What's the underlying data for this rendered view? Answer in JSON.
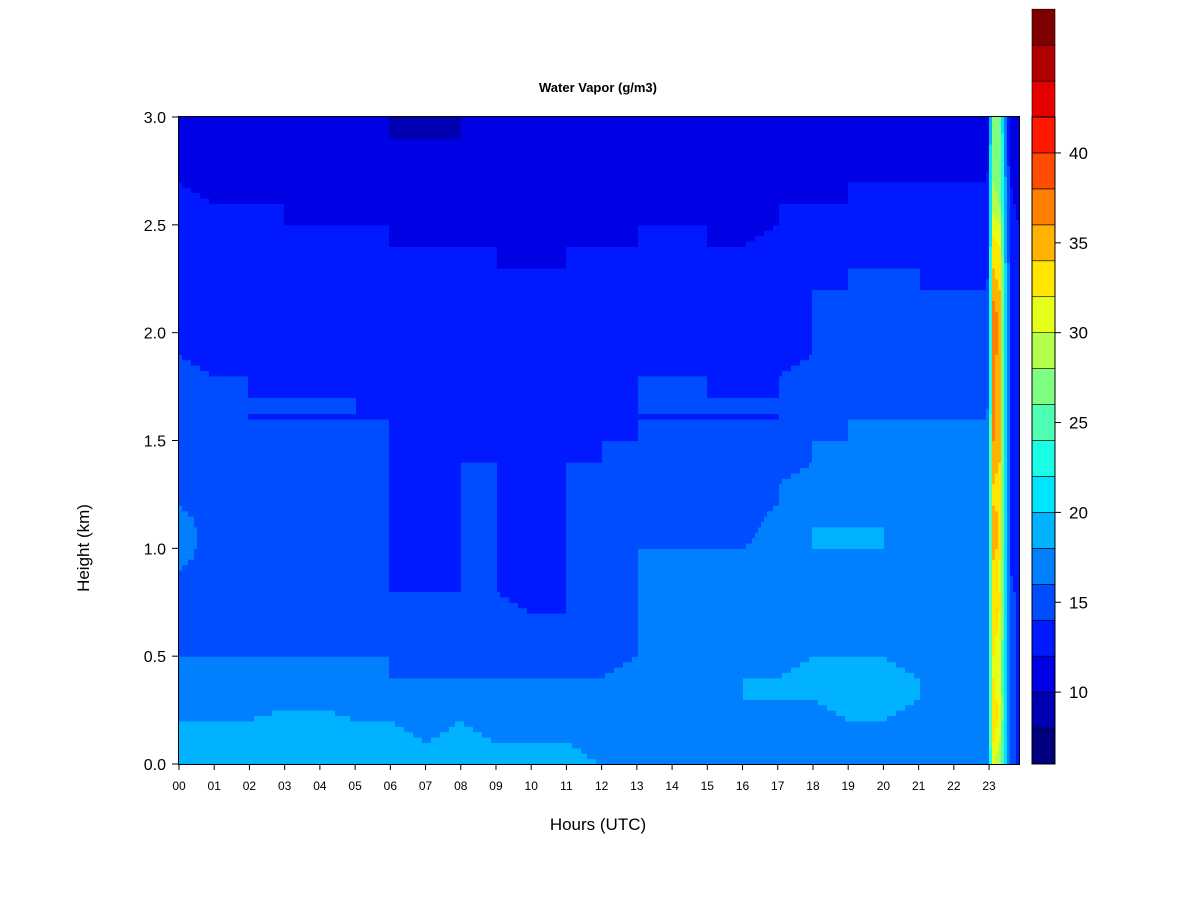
{
  "chart_data": {
    "type": "heatmap",
    "title": "Water Vapor (g/m3)",
    "xlabel": "Hours (UTC)",
    "ylabel": "Height (km)",
    "x_ticks": [
      "00",
      "01",
      "02",
      "03",
      "04",
      "05",
      "06",
      "07",
      "08",
      "09",
      "10",
      "11",
      "12",
      "13",
      "14",
      "15",
      "16",
      "17",
      "18",
      "19",
      "20",
      "21",
      "22",
      "23"
    ],
    "xlim": [
      0,
      23.85
    ],
    "ylim": [
      0,
      3.0
    ],
    "y_ticks": [
      "0.0",
      "0.5",
      "1.0",
      "1.5",
      "2.0",
      "2.5",
      "3.0"
    ],
    "y_tick_values": [
      0,
      0.5,
      1.0,
      1.5,
      2.0,
      2.5,
      3.0
    ],
    "colorbar": {
      "range": [
        6,
        42
      ],
      "step": 2,
      "tick_values": [
        10,
        15,
        20,
        25,
        30,
        35,
        40
      ],
      "tick_labels": [
        "10",
        "15",
        "20",
        "25",
        "30",
        "35",
        "40"
      ],
      "colors": [
        "#00007f",
        "#0000b2",
        "#0000e5",
        "#0019ff",
        "#004cff",
        "#007fff",
        "#00b2ff",
        "#00e5ff",
        "#19ffe5",
        "#4cffb2",
        "#7fff7f",
        "#b2ff4c",
        "#e5ff19",
        "#ffe500",
        "#ffb200",
        "#ff7f00",
        "#ff4c00",
        "#ff1900",
        "#e50000",
        "#b20000",
        "#7f0000"
      ]
    },
    "heights_km": [
      0.0,
      0.1,
      0.2,
      0.3,
      0.4,
      0.5,
      0.6,
      0.7,
      0.8,
      0.9,
      1.0,
      1.1,
      1.2,
      1.3,
      1.4,
      1.5,
      1.6,
      1.7,
      1.8,
      1.9,
      2.0,
      2.1,
      2.2,
      2.3,
      2.4,
      2.5,
      2.6,
      2.7,
      2.8,
      2.9,
      3.0
    ],
    "profiles": [
      {
        "hour": 0.0,
        "values_gm3": [
          19,
          19,
          18,
          17,
          17,
          16,
          16,
          16,
          16,
          16,
          17,
          17,
          16,
          16,
          16,
          16,
          16,
          16,
          15,
          14,
          14,
          14,
          14,
          14,
          14,
          14,
          13,
          12,
          11,
          11,
          10
        ]
      },
      {
        "hour": 1.0,
        "values_gm3": [
          19,
          19,
          18,
          17,
          16,
          16,
          15,
          15,
          15,
          15,
          15,
          15,
          15,
          15,
          15,
          15,
          15,
          14,
          14,
          13,
          13,
          13,
          13,
          13,
          13,
          13,
          12,
          11,
          11,
          10,
          10
        ]
      },
      {
        "hour": 2.0,
        "values_gm3": [
          19,
          19,
          18,
          17,
          16,
          16,
          15,
          15,
          15,
          15,
          15,
          15,
          15,
          15,
          15,
          15,
          14,
          14,
          14,
          13,
          13,
          13,
          13,
          13,
          13,
          12,
          12,
          11,
          11,
          10,
          10
        ]
      },
      {
        "hour": 3.0,
        "values_gm3": [
          20,
          19,
          19,
          17,
          16,
          16,
          15,
          15,
          15,
          15,
          15,
          15,
          15,
          15,
          15,
          14,
          14,
          14,
          13,
          13,
          13,
          13,
          13,
          13,
          13,
          12,
          12,
          11,
          11,
          10,
          10
        ]
      },
      {
        "hour": 4.0,
        "values_gm3": [
          20,
          19,
          19,
          17,
          16,
          16,
          15,
          15,
          15,
          15,
          15,
          15,
          15,
          15,
          14,
          14,
          14,
          14,
          13,
          13,
          13,
          13,
          13,
          13,
          13,
          12,
          11,
          11,
          10,
          10,
          10
        ]
      },
      {
        "hour": 5.0,
        "values_gm3": [
          19,
          19,
          18,
          17,
          16,
          16,
          15,
          15,
          15,
          15,
          15,
          15,
          15,
          15,
          14,
          14,
          14,
          14,
          13,
          13,
          13,
          13,
          13,
          12,
          12,
          12,
          11,
          11,
          10,
          10,
          10
        ]
      },
      {
        "hour": 6.0,
        "values_gm3": [
          19,
          19,
          18,
          17,
          16,
          16,
          15,
          14,
          14,
          14,
          14,
          14,
          14,
          14,
          14,
          14,
          14,
          13,
          13,
          13,
          13,
          13,
          12,
          12,
          12,
          12,
          11,
          11,
          10,
          10,
          10
        ]
      },
      {
        "hour": 7.0,
        "values_gm3": [
          19,
          18,
          17,
          16,
          16,
          15,
          15,
          14,
          14,
          13,
          13,
          12,
          12,
          12,
          13,
          13,
          13,
          13,
          13,
          13,
          12,
          12,
          12,
          12,
          12,
          11,
          11,
          10,
          10,
          10,
          9
        ]
      },
      {
        "hour": 8.0,
        "values_gm3": [
          19,
          19,
          18,
          17,
          16,
          16,
          15,
          15,
          14,
          14,
          14,
          14,
          14,
          14,
          14,
          14,
          13,
          13,
          13,
          13,
          13,
          12,
          12,
          12,
          12,
          11,
          11,
          10,
          10,
          10,
          10
        ]
      },
      {
        "hour": 9.0,
        "values_gm3": [
          19,
          18,
          17,
          17,
          16,
          15,
          15,
          15,
          14,
          14,
          14,
          14,
          14,
          14,
          14,
          13,
          13,
          13,
          13,
          13,
          13,
          12,
          12,
          12,
          12,
          11,
          11,
          10,
          10,
          10,
          10
        ]
      },
      {
        "hour": 10.0,
        "values_gm3": [
          18,
          18,
          17,
          16,
          16,
          15,
          14,
          14,
          13,
          13,
          13,
          13,
          13,
          13,
          13,
          13,
          13,
          13,
          13,
          12,
          12,
          12,
          12,
          12,
          11,
          11,
          11,
          10,
          10,
          10,
          10
        ]
      },
      {
        "hour": 11.0,
        "values_gm3": [
          19,
          18,
          17,
          16,
          16,
          15,
          15,
          14,
          14,
          14,
          14,
          14,
          14,
          14,
          14,
          13,
          13,
          13,
          13,
          13,
          13,
          12,
          12,
          12,
          12,
          11,
          11,
          10,
          10,
          10,
          10
        ]
      },
      {
        "hour": 12.0,
        "values_gm3": [
          18,
          17,
          17,
          16,
          16,
          15,
          15,
          15,
          14,
          14,
          14,
          14,
          14,
          14,
          14,
          14,
          13,
          13,
          13,
          13,
          13,
          12,
          12,
          12,
          12,
          11,
          11,
          10,
          10,
          10,
          10
        ]
      },
      {
        "hour": 13.0,
        "values_gm3": [
          18,
          18,
          18,
          17,
          17,
          16,
          16,
          16,
          16,
          16,
          16,
          15,
          15,
          15,
          15,
          14,
          14,
          14,
          14,
          13,
          13,
          13,
          13,
          13,
          12,
          12,
          11,
          11,
          10,
          10,
          10
        ]
      },
      {
        "hour": 14.0,
        "values_gm3": [
          17,
          17,
          18,
          18,
          18,
          17,
          17,
          16,
          16,
          16,
          16,
          15,
          15,
          15,
          15,
          14,
          14,
          14,
          14,
          13,
          13,
          13,
          13,
          13,
          12,
          12,
          11,
          11,
          10,
          10,
          10
        ]
      },
      {
        "hour": 15.0,
        "values_gm3": [
          17,
          17,
          17,
          18,
          17,
          17,
          16,
          16,
          16,
          16,
          16,
          15,
          15,
          15,
          15,
          14,
          14,
          14,
          14,
          13,
          13,
          13,
          13,
          13,
          12,
          12,
          11,
          11,
          10,
          10,
          10
        ]
      },
      {
        "hour": 16.0,
        "values_gm3": [
          17,
          17,
          17,
          18,
          18,
          17,
          16,
          16,
          16,
          16,
          16,
          15,
          15,
          15,
          15,
          14,
          14,
          14,
          13,
          13,
          13,
          13,
          13,
          12,
          12,
          11,
          11,
          10,
          10,
          10,
          10
        ]
      },
      {
        "hour": 17.0,
        "values_gm3": [
          17,
          17,
          17,
          18,
          18,
          17,
          17,
          16,
          16,
          16,
          17,
          17,
          16,
          16,
          15,
          15,
          14,
          14,
          14,
          13,
          13,
          13,
          13,
          13,
          13,
          12,
          12,
          11,
          11,
          10,
          10
        ]
      },
      {
        "hour": 18.0,
        "values_gm3": [
          17,
          17,
          17,
          18,
          19,
          18,
          17,
          17,
          16,
          16,
          18,
          18,
          17,
          17,
          16,
          16,
          15,
          15,
          15,
          14,
          14,
          14,
          14,
          13,
          13,
          13,
          12,
          11,
          11,
          10,
          10
        ]
      },
      {
        "hour": 19.0,
        "values_gm3": [
          17,
          17,
          18,
          19,
          19,
          18,
          17,
          17,
          17,
          17,
          18,
          18,
          17,
          17,
          16,
          16,
          16,
          15,
          15,
          14,
          14,
          14,
          14,
          14,
          13,
          13,
          12,
          12,
          11,
          10,
          10
        ]
      },
      {
        "hour": 20.0,
        "values_gm3": [
          17,
          17,
          18,
          19,
          19,
          18,
          17,
          17,
          17,
          17,
          18,
          18,
          17,
          17,
          16,
          16,
          16,
          15,
          15,
          15,
          14,
          14,
          14,
          14,
          13,
          13,
          12,
          12,
          11,
          10,
          10
        ]
      },
      {
        "hour": 21.0,
        "values_gm3": [
          17,
          17,
          17,
          18,
          18,
          17,
          17,
          17,
          16,
          16,
          17,
          17,
          17,
          16,
          16,
          16,
          16,
          15,
          15,
          15,
          14,
          14,
          14,
          14,
          13,
          13,
          12,
          12,
          11,
          10,
          10
        ]
      },
      {
        "hour": 22.0,
        "values_gm3": [
          17,
          17,
          17,
          17,
          17,
          16,
          16,
          16,
          16,
          16,
          17,
          17,
          16,
          16,
          16,
          16,
          16,
          15,
          15,
          14,
          14,
          14,
          14,
          13,
          13,
          13,
          12,
          12,
          11,
          10,
          10
        ]
      },
      {
        "hour": 22.95,
        "values_gm3": [
          17,
          17,
          17,
          17,
          17,
          16,
          16,
          16,
          16,
          16,
          17,
          17,
          16,
          16,
          16,
          16,
          16,
          15,
          15,
          14,
          14,
          14,
          14,
          13,
          13,
          13,
          12,
          12,
          11,
          10,
          10
        ]
      },
      {
        "hour": 23.05,
        "values_gm3": [
          24,
          25,
          26,
          26,
          26,
          26,
          26,
          26,
          26,
          25,
          26,
          26,
          25,
          25,
          25,
          25,
          25,
          24,
          24,
          24,
          24,
          24,
          24,
          23,
          23,
          22,
          21,
          21,
          21,
          21,
          21
        ]
      },
      {
        "hour": 23.12,
        "values_gm3": [
          30,
          32,
          34,
          33,
          32,
          32,
          33,
          34,
          34,
          33,
          35,
          36,
          34,
          34,
          35,
          36,
          37,
          37,
          37,
          37,
          38,
          37,
          35,
          34,
          33,
          31,
          29,
          28,
          28,
          28,
          27
        ]
      },
      {
        "hour": 23.3,
        "values_gm3": [
          28,
          30,
          31,
          31,
          30,
          30,
          31,
          32,
          32,
          31,
          33,
          34,
          33,
          33,
          34,
          34,
          35,
          35,
          35,
          35,
          36,
          35,
          34,
          33,
          32,
          30,
          28,
          27,
          27,
          27,
          26
        ]
      },
      {
        "hour": 23.45,
        "values_gm3": [
          21,
          21,
          22,
          22,
          22,
          22,
          22,
          22,
          22,
          22,
          22,
          22,
          22,
          22,
          22,
          22,
          22,
          21,
          21,
          21,
          21,
          21,
          21,
          21,
          20,
          20,
          19,
          19,
          18,
          18,
          18
        ]
      },
      {
        "hour": 23.6,
        "values_gm3": [
          15,
          15,
          15,
          15,
          15,
          15,
          15,
          15,
          15,
          14,
          14,
          14,
          14,
          14,
          14,
          14,
          14,
          14,
          14,
          14,
          14,
          14,
          14,
          14,
          13,
          13,
          13,
          12,
          12,
          12,
          12
        ]
      },
      {
        "hour": 23.85,
        "values_gm3": [
          13,
          13,
          13,
          13,
          13,
          13,
          13,
          13,
          13,
          13,
          13,
          13,
          13,
          13,
          13,
          13,
          13,
          13,
          13,
          13,
          13,
          13,
          13,
          12,
          12,
          12,
          11,
          11,
          11,
          11,
          11
        ]
      }
    ]
  }
}
